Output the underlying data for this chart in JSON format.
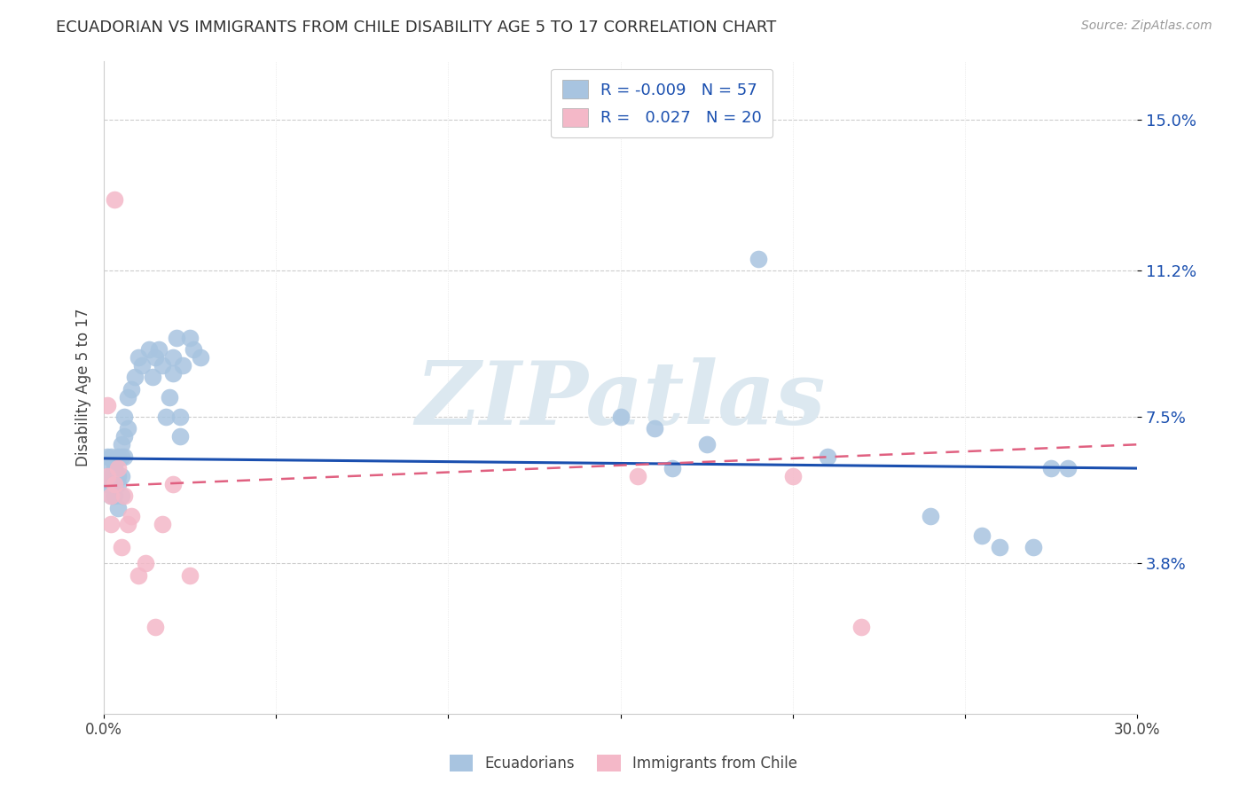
{
  "title": "ECUADORIAN VS IMMIGRANTS FROM CHILE DISABILITY AGE 5 TO 17 CORRELATION CHART",
  "source": "Source: ZipAtlas.com",
  "ylabel": "Disability Age 5 to 17",
  "xlim": [
    0.0,
    0.3
  ],
  "ylim": [
    0.0,
    0.165
  ],
  "yticks": [
    0.038,
    0.075,
    0.112,
    0.15
  ],
  "ytick_labels": [
    "3.8%",
    "7.5%",
    "11.2%",
    "15.0%"
  ],
  "xticks": [
    0.0,
    0.05,
    0.1,
    0.15,
    0.2,
    0.25,
    0.3
  ],
  "xtick_labels": [
    "0.0%",
    "",
    "",
    "",
    "",
    "",
    "30.0%"
  ],
  "legend_label1": "Ecuadorians",
  "legend_label2": "Immigrants from Chile",
  "R1": "-0.009",
  "N1": "57",
  "R2": "0.027",
  "N2": "20",
  "color1": "#a8c4e0",
  "color2": "#f4b8c8",
  "line_color1": "#1a4faf",
  "line_color2": "#e06080",
  "background_color": "#ffffff",
  "watermark": "ZIPatlas",
  "watermark_color": "#dce8f0",
  "ecu_x": [
    0.001,
    0.001,
    0.001,
    0.002,
    0.002,
    0.002,
    0.002,
    0.003,
    0.003,
    0.003,
    0.003,
    0.003,
    0.004,
    0.004,
    0.004,
    0.004,
    0.005,
    0.005,
    0.005,
    0.005,
    0.006,
    0.006,
    0.006,
    0.007,
    0.007,
    0.008,
    0.009,
    0.01,
    0.011,
    0.013,
    0.014,
    0.015,
    0.016,
    0.017,
    0.018,
    0.019,
    0.02,
    0.02,
    0.021,
    0.022,
    0.022,
    0.023,
    0.025,
    0.026,
    0.028,
    0.15,
    0.16,
    0.165,
    0.175,
    0.19,
    0.21,
    0.24,
    0.255,
    0.26,
    0.27,
    0.275,
    0.28
  ],
  "ecu_y": [
    0.065,
    0.062,
    0.058,
    0.065,
    0.06,
    0.055,
    0.058,
    0.063,
    0.06,
    0.055,
    0.062,
    0.058,
    0.065,
    0.06,
    0.058,
    0.052,
    0.068,
    0.065,
    0.06,
    0.055,
    0.075,
    0.07,
    0.065,
    0.08,
    0.072,
    0.082,
    0.085,
    0.09,
    0.088,
    0.092,
    0.085,
    0.09,
    0.092,
    0.088,
    0.075,
    0.08,
    0.09,
    0.086,
    0.095,
    0.075,
    0.07,
    0.088,
    0.095,
    0.092,
    0.09,
    0.075,
    0.072,
    0.062,
    0.068,
    0.115,
    0.065,
    0.05,
    0.045,
    0.042,
    0.042,
    0.062,
    0.062
  ],
  "chile_x": [
    0.001,
    0.001,
    0.002,
    0.002,
    0.003,
    0.003,
    0.004,
    0.005,
    0.006,
    0.007,
    0.008,
    0.01,
    0.012,
    0.015,
    0.017,
    0.02,
    0.025,
    0.155,
    0.2,
    0.22
  ],
  "chile_y": [
    0.078,
    0.06,
    0.055,
    0.048,
    0.13,
    0.058,
    0.062,
    0.042,
    0.055,
    0.048,
    0.05,
    0.035,
    0.038,
    0.022,
    0.048,
    0.058,
    0.035,
    0.06,
    0.06,
    0.022
  ],
  "ecu_trend_x": [
    0.0,
    0.3
  ],
  "ecu_trend_y": [
    0.0645,
    0.062
  ],
  "chile_trend_x": [
    0.0,
    0.3
  ],
  "chile_trend_y": [
    0.0575,
    0.068
  ]
}
